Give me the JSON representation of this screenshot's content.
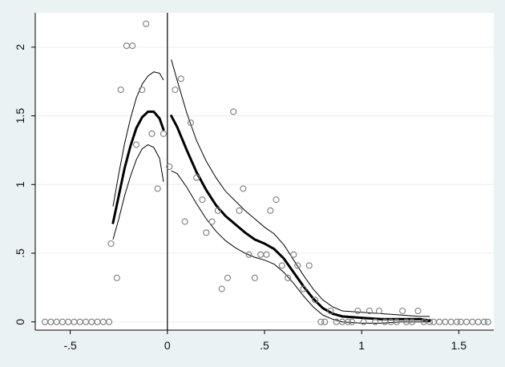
{
  "chart_data": {
    "type": "scatter",
    "title": "",
    "xlabel": "",
    "ylabel": "",
    "xlim": [
      -0.68,
      1.68
    ],
    "ylim": [
      -0.06,
      2.25
    ],
    "x_ticks": [
      {
        "value": -0.5,
        "label": "-.5"
      },
      {
        "value": 0,
        "label": "0"
      },
      {
        "value": 0.5,
        "label": ".5"
      },
      {
        "value": 1,
        "label": "1"
      },
      {
        "value": 1.5,
        "label": "1.5"
      }
    ],
    "y_ticks": [
      {
        "value": 0,
        "label": "0"
      },
      {
        "value": 0.5,
        "label": ".5"
      },
      {
        "value": 1,
        "label": "1"
      },
      {
        "value": 1.5,
        "label": "1.5"
      },
      {
        "value": 2,
        "label": "2"
      }
    ],
    "grid": true,
    "vertical_reference_line": 0,
    "colors": {
      "background": "#eaf2f3",
      "plot_background": "#ffffff",
      "grid": "#eaf2f3",
      "points": "#7d7d7d",
      "fit_line": "#000000"
    },
    "points": {
      "x": [
        -0.63,
        -0.6,
        -0.57,
        -0.54,
        -0.51,
        -0.48,
        -0.45,
        -0.42,
        -0.39,
        -0.36,
        -0.33,
        -0.3,
        -0.29,
        -0.26,
        -0.24,
        -0.21,
        -0.18,
        -0.16,
        -0.13,
        -0.11,
        -0.08,
        -0.05,
        -0.02,
        0.01,
        0.04,
        0.07,
        0.09,
        0.12,
        0.15,
        0.18,
        0.2,
        0.23,
        0.26,
        0.28,
        0.31,
        0.34,
        0.37,
        0.39,
        0.42,
        0.45,
        0.48,
        0.51,
        0.53,
        0.56,
        0.59,
        0.62,
        0.65,
        0.67,
        0.7,
        0.73,
        0.76,
        0.79,
        0.81,
        0.84,
        0.87,
        0.9,
        0.93,
        0.95,
        0.98,
        1.01,
        1.04,
        1.07,
        1.09,
        1.12,
        1.15,
        1.18,
        1.21,
        1.23,
        1.26,
        1.29,
        1.32,
        1.35,
        1.37,
        1.4,
        1.43,
        1.46,
        1.49,
        1.51,
        1.54,
        1.57,
        1.6,
        1.63,
        1.65
      ],
      "y": [
        0,
        0,
        0,
        0,
        0,
        0,
        0,
        0,
        0,
        0,
        0,
        0,
        0.57,
        0.32,
        1.69,
        2.01,
        2.01,
        1.29,
        1.69,
        2.17,
        1.37,
        0.97,
        1.37,
        1.13,
        1.69,
        1.77,
        0.73,
        1.45,
        1.05,
        0.89,
        0.65,
        0.73,
        0.81,
        0.24,
        0.32,
        1.53,
        0.81,
        0.97,
        0.49,
        0.32,
        0.49,
        0.49,
        0.81,
        0.89,
        0.41,
        0.32,
        0.49,
        0.41,
        0.24,
        0.41,
        0.16,
        0,
        0,
        0.08,
        0,
        0,
        0,
        0,
        0.08,
        0,
        0.08,
        0,
        0.08,
        0,
        0,
        0,
        0.08,
        0,
        0,
        0.08,
        0,
        0,
        0,
        0,
        0,
        0,
        0,
        0,
        0,
        0,
        0,
        0,
        0
      ]
    },
    "fit_left": {
      "x": [
        -0.28,
        -0.25,
        -0.22,
        -0.19,
        -0.16,
        -0.13,
        -0.1,
        -0.07,
        -0.04,
        -0.02
      ],
      "y": [
        0.72,
        0.92,
        1.12,
        1.28,
        1.41,
        1.49,
        1.53,
        1.53,
        1.48,
        1.4
      ],
      "lower": [
        0.6,
        0.75,
        0.92,
        1.06,
        1.18,
        1.26,
        1.29,
        1.27,
        1.19,
        1.02
      ],
      "upper": [
        0.84,
        1.08,
        1.3,
        1.48,
        1.63,
        1.73,
        1.79,
        1.82,
        1.81,
        1.76
      ]
    },
    "fit_right": {
      "x": [
        0.02,
        0.05,
        0.1,
        0.15,
        0.2,
        0.25,
        0.3,
        0.35,
        0.4,
        0.45,
        0.5,
        0.55,
        0.6,
        0.65,
        0.7,
        0.75,
        0.8,
        0.85,
        0.9,
        1.0,
        1.1,
        1.2,
        1.3,
        1.35
      ],
      "y": [
        1.5,
        1.42,
        1.25,
        1.09,
        0.96,
        0.85,
        0.77,
        0.71,
        0.65,
        0.6,
        0.57,
        0.53,
        0.46,
        0.36,
        0.26,
        0.17,
        0.1,
        0.06,
        0.04,
        0.03,
        0.02,
        0.02,
        0.02,
        0.01
      ],
      "lower": [
        1.1,
        1.08,
        0.98,
        0.86,
        0.75,
        0.66,
        0.59,
        0.54,
        0.5,
        0.47,
        0.45,
        0.42,
        0.36,
        0.28,
        0.19,
        0.11,
        0.05,
        0.02,
        0.0,
        -0.01,
        -0.01,
        0.0,
        0.0,
        0.0
      ],
      "upper": [
        1.91,
        1.76,
        1.52,
        1.32,
        1.17,
        1.05,
        0.95,
        0.88,
        0.81,
        0.75,
        0.69,
        0.64,
        0.56,
        0.45,
        0.34,
        0.24,
        0.16,
        0.11,
        0.08,
        0.07,
        0.06,
        0.05,
        0.04,
        0.04
      ]
    }
  }
}
